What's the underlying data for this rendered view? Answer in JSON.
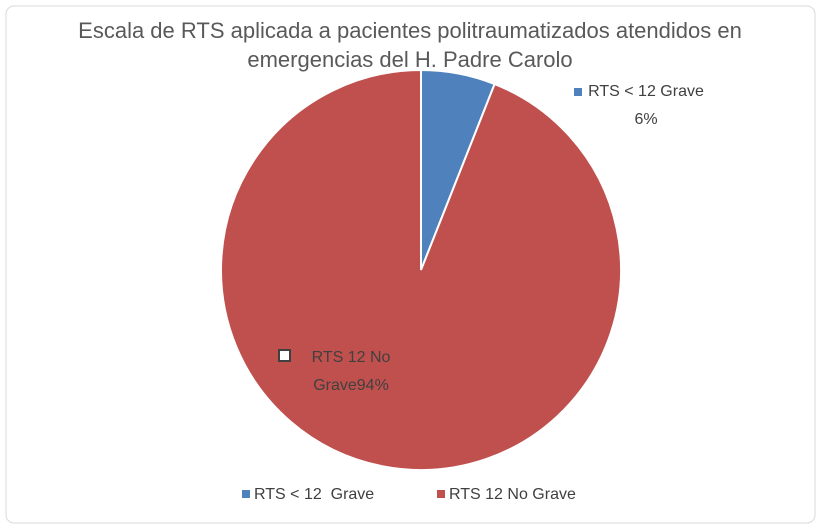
{
  "chart_data": {
    "type": "pie",
    "title": "Escala de RTS aplicada a pacientes politraumatizados atendidos en emergencias del H. Padre Carolo",
    "categories": [
      "RTS < 12  Grave",
      "RTS 12 No Grave"
    ],
    "values": [
      6,
      94
    ],
    "value_labels": [
      "RTS < 12 Grave 6%",
      "RTS 12 No Grave94%"
    ],
    "colors": [
      "#4f81bd",
      "#c0504d"
    ],
    "legend": "bottom"
  }
}
